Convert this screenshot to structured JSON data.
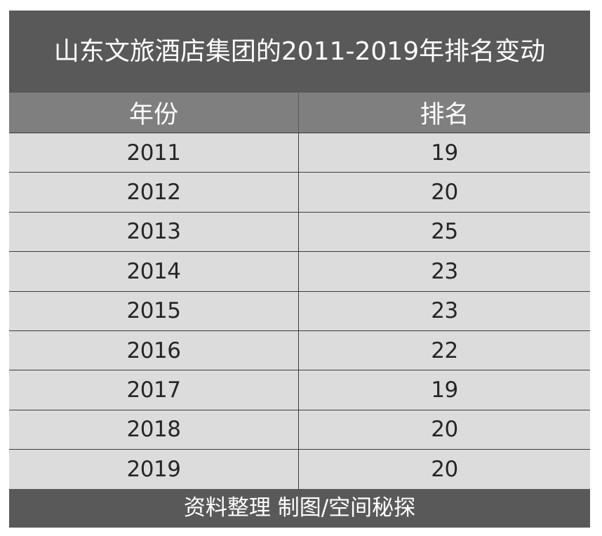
{
  "chart_data": {
    "type": "table",
    "title": "山东文旅酒店集团的2011-2019年排名变动",
    "columns": [
      "年份",
      "排名"
    ],
    "rows": [
      [
        "2011",
        "19"
      ],
      [
        "2012",
        "20"
      ],
      [
        "2013",
        "25"
      ],
      [
        "2014",
        "23"
      ],
      [
        "2015",
        "23"
      ],
      [
        "2016",
        "22"
      ],
      [
        "2017",
        "19"
      ],
      [
        "2018",
        "20"
      ],
      [
        "2019",
        "20"
      ]
    ],
    "footer": "资料整理 制图/空间秘探"
  },
  "colors": {
    "title_bg": "#595959",
    "header_bg": "#7f7f7f",
    "body_bg": "#dcdcdc",
    "footer_bg": "#595959",
    "body_text": "#262626",
    "header_text": "#ffffff"
  }
}
